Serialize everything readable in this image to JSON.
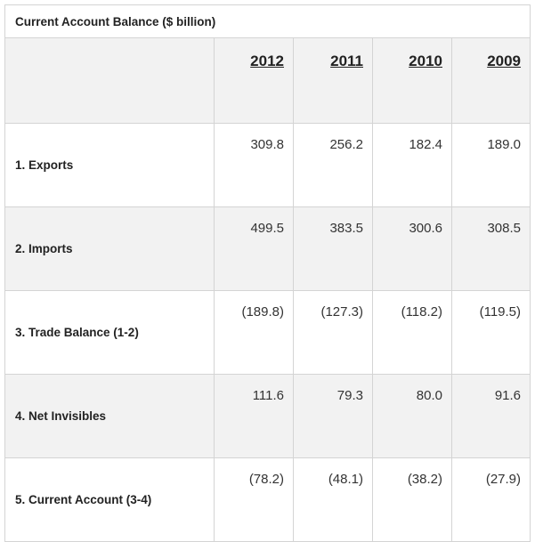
{
  "table": {
    "caption": "Current Account Balance ($ billion)",
    "corner": "",
    "years": [
      "2012",
      "2011",
      "2010",
      "2009"
    ],
    "rows": [
      {
        "label": "1. Exports",
        "values": [
          "309.8",
          "256.2",
          "182.4",
          "189.0"
        ]
      },
      {
        "label": "2. Imports",
        "values": [
          "499.5",
          "383.5",
          "300.6",
          "308.5"
        ]
      },
      {
        "label": "3. Trade Balance (1-2)",
        "values": [
          "(189.8)",
          "(127.3)",
          "(118.2)",
          "(119.5)"
        ]
      },
      {
        "label": "4. Net Invisibles",
        "values": [
          "111.6",
          "79.3",
          "80.0",
          "91.6"
        ]
      },
      {
        "label": "5. Current Account (3-4)",
        "values": [
          "(78.2)",
          "(48.1)",
          "(38.2)",
          "(27.9)"
        ]
      }
    ]
  }
}
